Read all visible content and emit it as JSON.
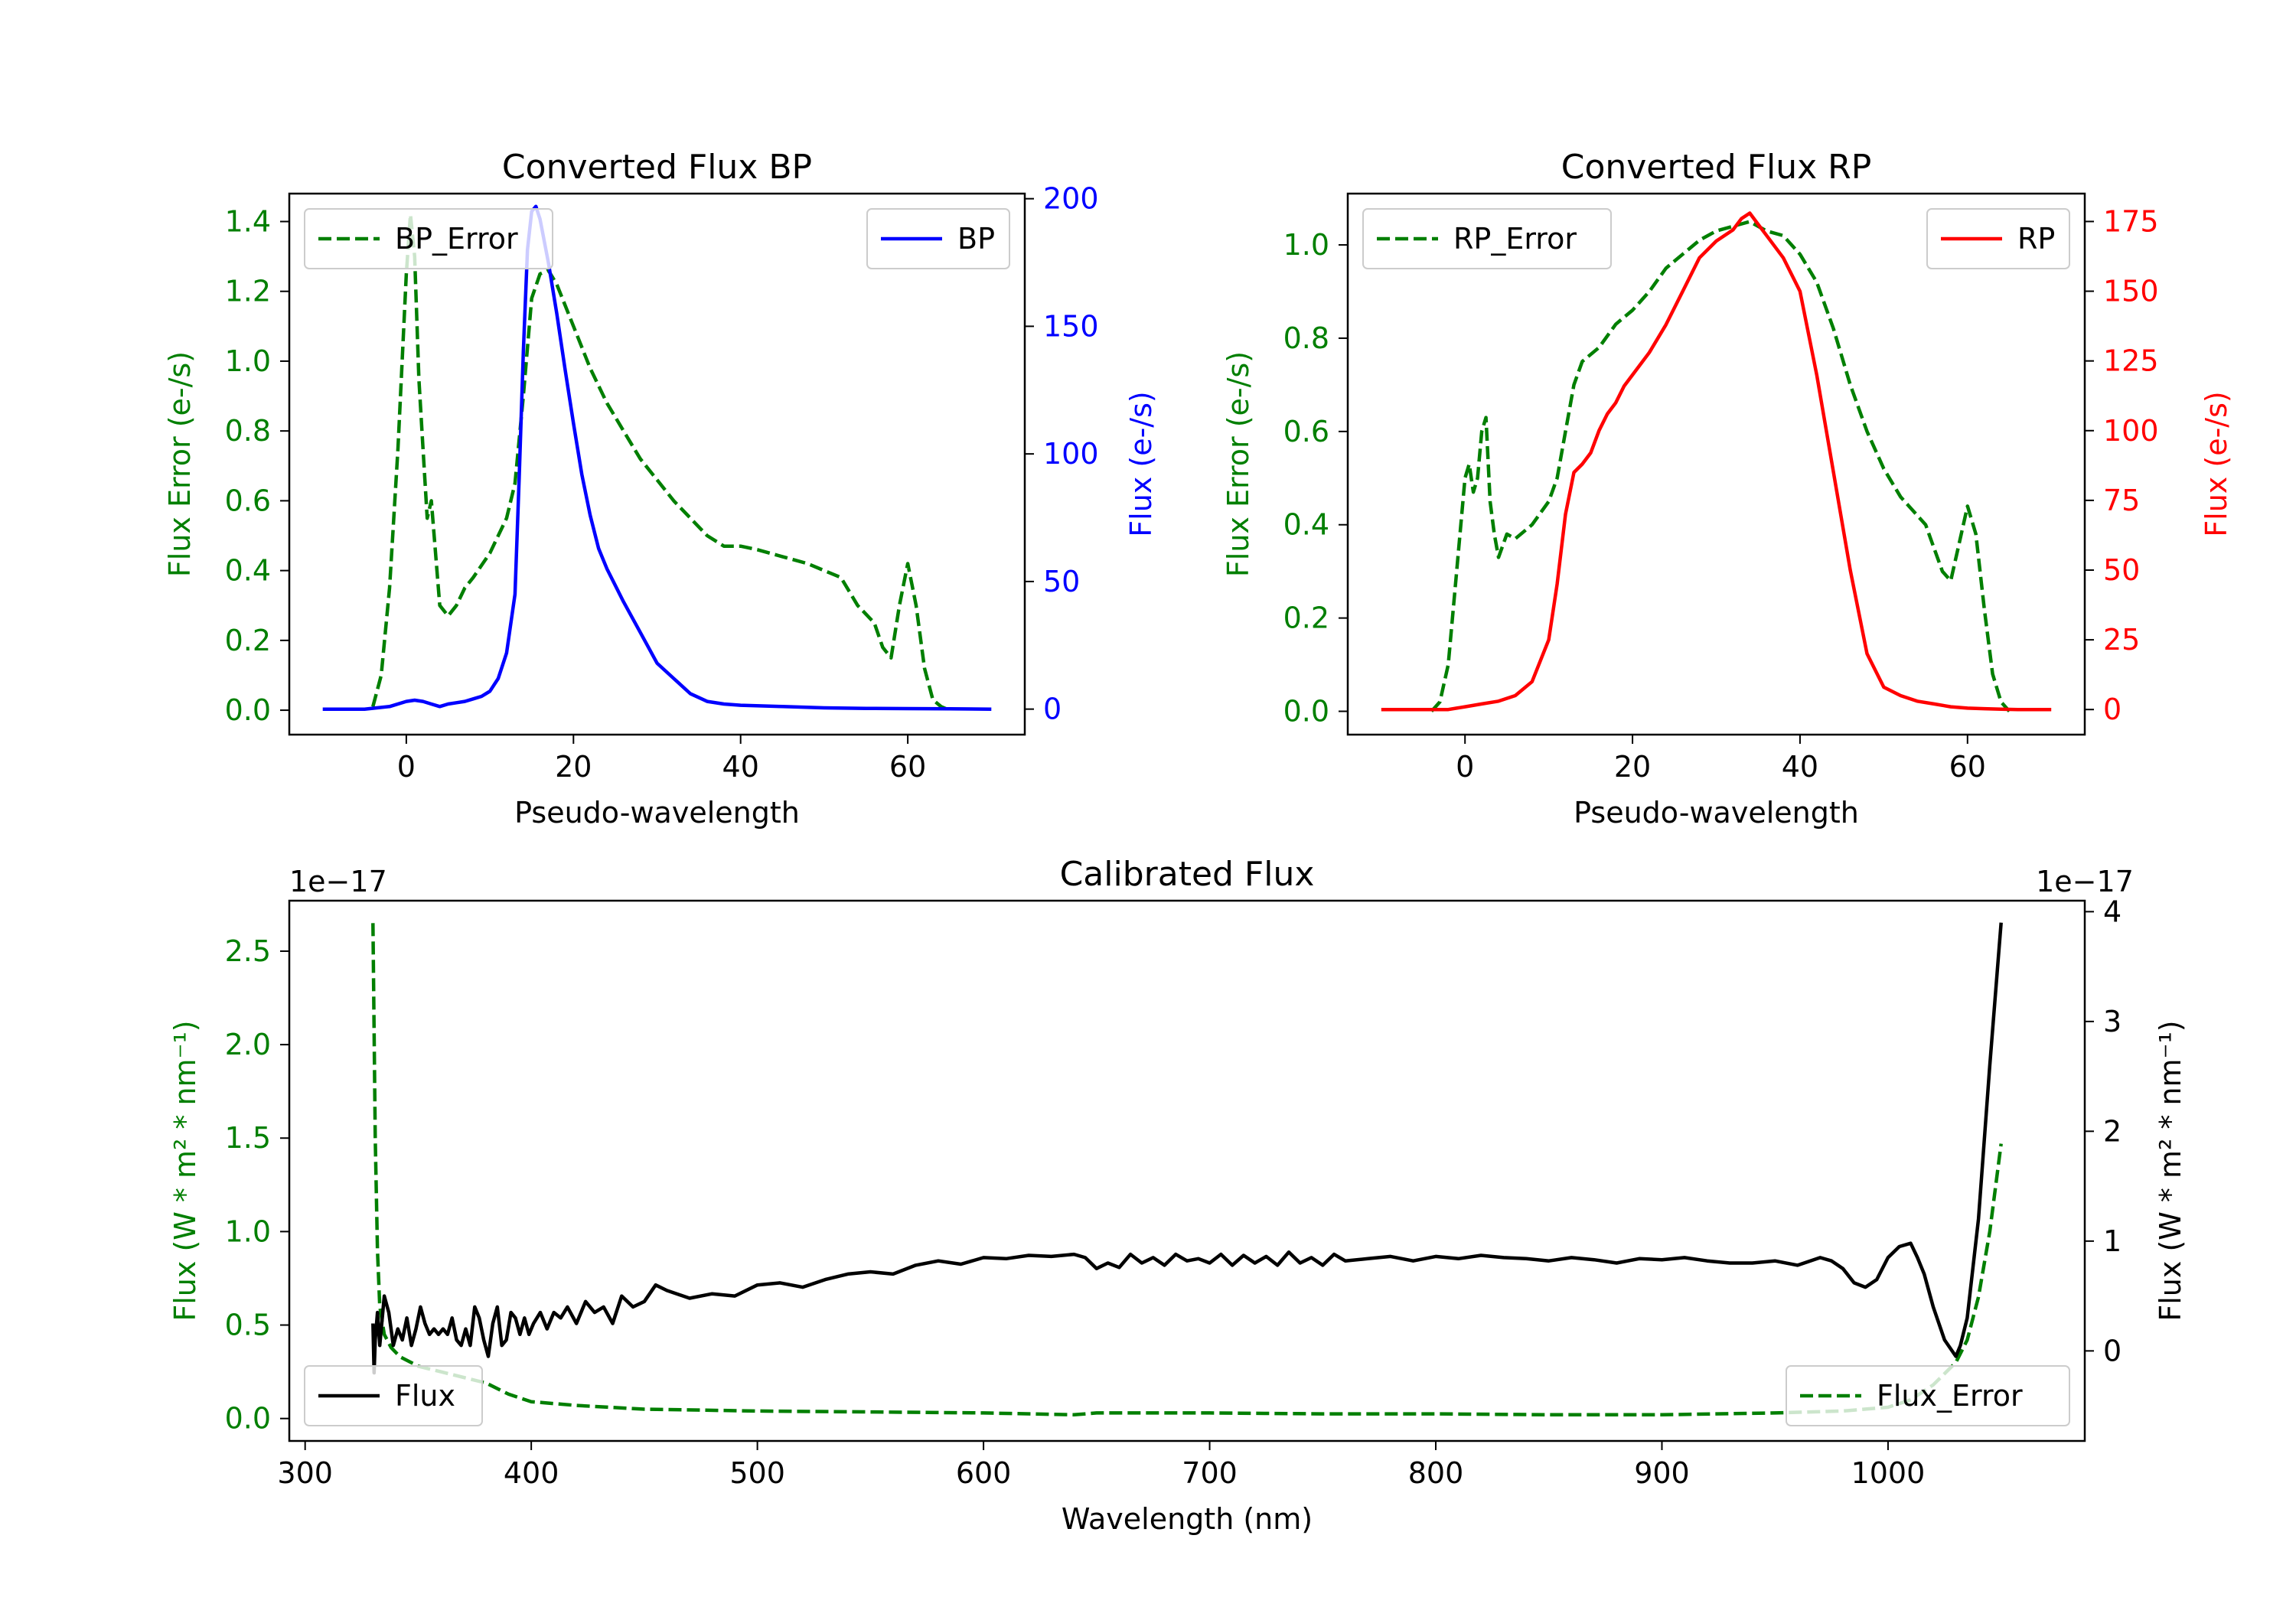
{
  "colors": {
    "green": "#007f00",
    "blue": "#0000ff",
    "red": "#ff0000",
    "black": "#000000"
  },
  "chart_data": [
    {
      "id": "bp",
      "type": "line",
      "title": "Converted Flux BP",
      "xlabel": "Pseudo-wavelength",
      "ylabel_left": "Flux Error (e-/s)",
      "ylabel_right": "Flux (e-/s)",
      "xlim": [
        -14,
        74
      ],
      "ylim_left": [
        -0.07,
        1.48
      ],
      "ylim_right": [
        -10,
        202
      ],
      "xticks": [
        0,
        20,
        40,
        60
      ],
      "yticks_left": [
        "0.0",
        "0.2",
        "0.4",
        "0.6",
        "0.8",
        "1.0",
        "1.2",
        "1.4"
      ],
      "yticks_right": [
        "0",
        "50",
        "100",
        "150",
        "200"
      ],
      "series": [
        {
          "name": "BP_Error",
          "axis": "left",
          "style": "dashed",
          "color": "#007f00",
          "x": [
            -4,
            -3,
            -2,
            -1,
            0,
            0.5,
            1,
            1.5,
            2,
            2.5,
            3,
            4,
            5,
            6,
            7,
            8,
            10,
            12,
            13,
            14,
            15,
            16,
            17,
            18,
            20,
            22,
            24,
            26,
            28,
            30,
            32,
            34,
            36,
            38,
            40,
            42,
            45,
            48,
            50,
            52,
            54,
            56,
            57,
            58,
            59,
            60,
            61,
            62,
            63,
            64,
            65
          ],
          "y": [
            0.01,
            0.1,
            0.35,
            0.75,
            1.25,
            1.42,
            1.3,
            0.95,
            0.75,
            0.55,
            0.6,
            0.3,
            0.27,
            0.3,
            0.35,
            0.38,
            0.45,
            0.55,
            0.65,
            0.9,
            1.18,
            1.25,
            1.26,
            1.22,
            1.1,
            0.98,
            0.88,
            0.8,
            0.72,
            0.66,
            0.6,
            0.55,
            0.5,
            0.47,
            0.47,
            0.46,
            0.44,
            0.42,
            0.4,
            0.38,
            0.3,
            0.25,
            0.18,
            0.15,
            0.3,
            0.42,
            0.3,
            0.12,
            0.03,
            0.01,
            0.0
          ]
        },
        {
          "name": "BP",
          "axis": "right",
          "style": "solid",
          "color": "#0000ff",
          "x": [
            -10,
            -5,
            -2,
            0,
            1,
            2,
            3,
            4,
            5,
            6,
            7,
            8,
            9,
            10,
            11,
            12,
            13,
            13.5,
            14,
            14.5,
            15,
            15.5,
            16,
            17,
            18,
            19,
            20,
            21,
            22,
            23,
            24,
            26,
            28,
            30,
            32,
            34,
            36,
            38,
            40,
            45,
            50,
            55,
            60,
            65,
            70
          ],
          "y": [
            0,
            0,
            1,
            3,
            3.5,
            3,
            2,
            1,
            2,
            2.5,
            3,
            4,
            5,
            7,
            12,
            22,
            45,
            90,
            140,
            180,
            195,
            197,
            192,
            175,
            155,
            133,
            112,
            92,
            76,
            63,
            55,
            42,
            30,
            18,
            12,
            6,
            3,
            2,
            1.5,
            1,
            0.5,
            0.3,
            0.2,
            0.1,
            0
          ]
        }
      ],
      "legend": [
        {
          "label": "BP_Error",
          "position": "top-left"
        },
        {
          "label": "BP",
          "position": "top-right"
        }
      ]
    },
    {
      "id": "rp",
      "type": "line",
      "title": "Converted Flux RP",
      "xlabel": "Pseudo-wavelength",
      "ylabel_left": "Flux Error (e-/s)",
      "ylabel_right": "Flux (e-/s)",
      "xlim": [
        -14,
        74
      ],
      "ylim_left": [
        -0.05,
        1.11
      ],
      "ylim_right": [
        -9,
        185
      ],
      "xticks": [
        0,
        20,
        40,
        60
      ],
      "yticks_left": [
        "0.0",
        "0.2",
        "0.4",
        "0.6",
        "0.8",
        "1.0"
      ],
      "yticks_right": [
        "0",
        "25",
        "50",
        "75",
        "100",
        "125",
        "150",
        "175"
      ],
      "series": [
        {
          "name": "RP_Error",
          "axis": "left",
          "style": "dashed",
          "color": "#007f00",
          "x": [
            -4,
            -3,
            -2,
            -1,
            0,
            0.5,
            1,
            1.5,
            2,
            2.5,
            3,
            3.5,
            4,
            5,
            6,
            8,
            10,
            11,
            12,
            13,
            14,
            16,
            18,
            20,
            22,
            24,
            26,
            28,
            30,
            32,
            34,
            36,
            38,
            40,
            42,
            44,
            46,
            48,
            50,
            52,
            54,
            55,
            56,
            57,
            58,
            59,
            60,
            61,
            62,
            63,
            64,
            65
          ],
          "y": [
            0.0,
            0.02,
            0.1,
            0.3,
            0.5,
            0.53,
            0.47,
            0.5,
            0.6,
            0.63,
            0.45,
            0.38,
            0.33,
            0.38,
            0.37,
            0.4,
            0.45,
            0.5,
            0.6,
            0.7,
            0.75,
            0.78,
            0.83,
            0.86,
            0.9,
            0.95,
            0.98,
            1.01,
            1.03,
            1.04,
            1.05,
            1.03,
            1.02,
            0.98,
            0.92,
            0.82,
            0.7,
            0.6,
            0.52,
            0.46,
            0.42,
            0.4,
            0.35,
            0.3,
            0.28,
            0.36,
            0.44,
            0.38,
            0.22,
            0.08,
            0.02,
            0.0
          ]
        },
        {
          "name": "RP",
          "axis": "right",
          "style": "solid",
          "color": "#ff0000",
          "x": [
            -10,
            -2,
            0,
            2,
            4,
            6,
            8,
            10,
            11,
            12,
            13,
            14,
            15,
            16,
            17,
            18,
            19,
            20,
            22,
            24,
            26,
            28,
            30,
            32,
            33,
            34,
            35,
            36,
            38,
            40,
            42,
            44,
            46,
            48,
            50,
            52,
            54,
            56,
            58,
            60,
            62,
            64,
            66,
            70
          ],
          "y": [
            0,
            0,
            1,
            2,
            3,
            5,
            10,
            25,
            45,
            70,
            85,
            88,
            92,
            100,
            106,
            110,
            116,
            120,
            128,
            138,
            150,
            162,
            168,
            172,
            176,
            178,
            174,
            170,
            162,
            150,
            120,
            85,
            50,
            20,
            8,
            5,
            3,
            2,
            1,
            0.5,
            0.3,
            0.1,
            0,
            0
          ]
        }
      ],
      "legend": [
        {
          "label": "RP_Error",
          "position": "top-left"
        },
        {
          "label": "RP",
          "position": "top-right"
        }
      ]
    },
    {
      "id": "cal",
      "type": "line",
      "title": "Calibrated Flux",
      "xlabel": "Wavelength (nm)",
      "ylabel_left": "Flux (W * m² * nm⁻¹)",
      "ylabel_right": "Flux (W * m² * nm⁻¹)",
      "offset_left": "1e−17",
      "offset_right": "1e−17",
      "xlim": [
        293,
        1087
      ],
      "ylim_left": [
        -0.12,
        2.77
      ],
      "ylim_right": [
        -0.82,
        4.1
      ],
      "xticks": [
        300,
        400,
        500,
        600,
        700,
        800,
        900,
        1000
      ],
      "yticks_left": [
        "0.0",
        "0.5",
        "1.0",
        "1.5",
        "2.0",
        "2.5"
      ],
      "yticks_right": [
        "0",
        "1",
        "2",
        "3",
        "4"
      ],
      "series": [
        {
          "name": "Flux_Error",
          "axis": "left",
          "style": "dashed",
          "color": "#007f00",
          "x": [
            330,
            331,
            332,
            333,
            335,
            338,
            342,
            350,
            360,
            370,
            380,
            390,
            400,
            420,
            450,
            500,
            550,
            600,
            640,
            650,
            700,
            750,
            800,
            850,
            900,
            950,
            980,
            1000,
            1010,
            1020,
            1030,
            1035,
            1040,
            1045,
            1050
          ],
          "y": [
            2.65,
            1.5,
            0.9,
            0.6,
            0.45,
            0.38,
            0.33,
            0.28,
            0.25,
            0.22,
            0.19,
            0.13,
            0.09,
            0.07,
            0.05,
            0.04,
            0.035,
            0.03,
            0.02,
            0.03,
            0.03,
            0.025,
            0.025,
            0.02,
            0.02,
            0.03,
            0.04,
            0.06,
            0.1,
            0.18,
            0.3,
            0.42,
            0.65,
            1.0,
            1.47
          ]
        },
        {
          "name": "Flux",
          "axis": "right",
          "style": "solid",
          "color": "#000000",
          "x": [
            330,
            330.5,
            331,
            332,
            333,
            335,
            337,
            339,
            341,
            343,
            345,
            347,
            349,
            351,
            353,
            355,
            357,
            359,
            361,
            363,
            365,
            367,
            369,
            371,
            373,
            375,
            377,
            379,
            381,
            383,
            385,
            387,
            389,
            391,
            393,
            395,
            397,
            399,
            401,
            404,
            407,
            410,
            413,
            416,
            420,
            424,
            428,
            432,
            436,
            440,
            445,
            450,
            455,
            460,
            470,
            480,
            490,
            500,
            510,
            520,
            530,
            540,
            550,
            560,
            570,
            580,
            590,
            600,
            610,
            620,
            630,
            640,
            645,
            650,
            655,
            660,
            665,
            670,
            675,
            680,
            685,
            690,
            695,
            700,
            705,
            710,
            715,
            720,
            725,
            730,
            735,
            740,
            745,
            750,
            755,
            760,
            770,
            780,
            790,
            800,
            810,
            820,
            830,
            840,
            850,
            860,
            870,
            880,
            890,
            900,
            910,
            920,
            930,
            940,
            950,
            960,
            970,
            975,
            980,
            985,
            990,
            995,
            1000,
            1005,
            1010,
            1013,
            1016,
            1020,
            1025,
            1030,
            1032,
            1035,
            1040,
            1045,
            1050
          ],
          "y": [
            0.25,
            -0.2,
            0.1,
            0.35,
            0.05,
            0.5,
            0.35,
            0.05,
            0.2,
            0.1,
            0.3,
            0.05,
            0.2,
            0.4,
            0.25,
            0.15,
            0.2,
            0.15,
            0.2,
            0.15,
            0.3,
            0.1,
            0.05,
            0.2,
            0.05,
            0.4,
            0.3,
            0.1,
            -0.05,
            0.25,
            0.4,
            0.05,
            0.1,
            0.35,
            0.3,
            0.15,
            0.3,
            0.15,
            0.25,
            0.35,
            0.2,
            0.35,
            0.3,
            0.4,
            0.25,
            0.45,
            0.35,
            0.4,
            0.25,
            0.5,
            0.4,
            0.45,
            0.6,
            0.55,
            0.48,
            0.52,
            0.5,
            0.6,
            0.62,
            0.58,
            0.65,
            0.7,
            0.72,
            0.7,
            0.78,
            0.82,
            0.79,
            0.85,
            0.84,
            0.87,
            0.86,
            0.88,
            0.85,
            0.75,
            0.8,
            0.76,
            0.88,
            0.8,
            0.85,
            0.78,
            0.88,
            0.82,
            0.84,
            0.8,
            0.88,
            0.78,
            0.87,
            0.8,
            0.86,
            0.78,
            0.9,
            0.8,
            0.85,
            0.78,
            0.88,
            0.82,
            0.84,
            0.86,
            0.82,
            0.86,
            0.84,
            0.87,
            0.85,
            0.84,
            0.82,
            0.85,
            0.83,
            0.8,
            0.84,
            0.83,
            0.85,
            0.82,
            0.8,
            0.8,
            0.82,
            0.78,
            0.85,
            0.82,
            0.75,
            0.62,
            0.58,
            0.65,
            0.85,
            0.95,
            0.98,
            0.85,
            0.7,
            0.4,
            0.1,
            -0.05,
            0.05,
            0.3,
            1.2,
            2.6,
            3.9
          ]
        }
      ],
      "legend": [
        {
          "label": "Flux",
          "position": "bottom-left"
        },
        {
          "label": "Flux_Error",
          "position": "bottom-right"
        }
      ]
    }
  ]
}
